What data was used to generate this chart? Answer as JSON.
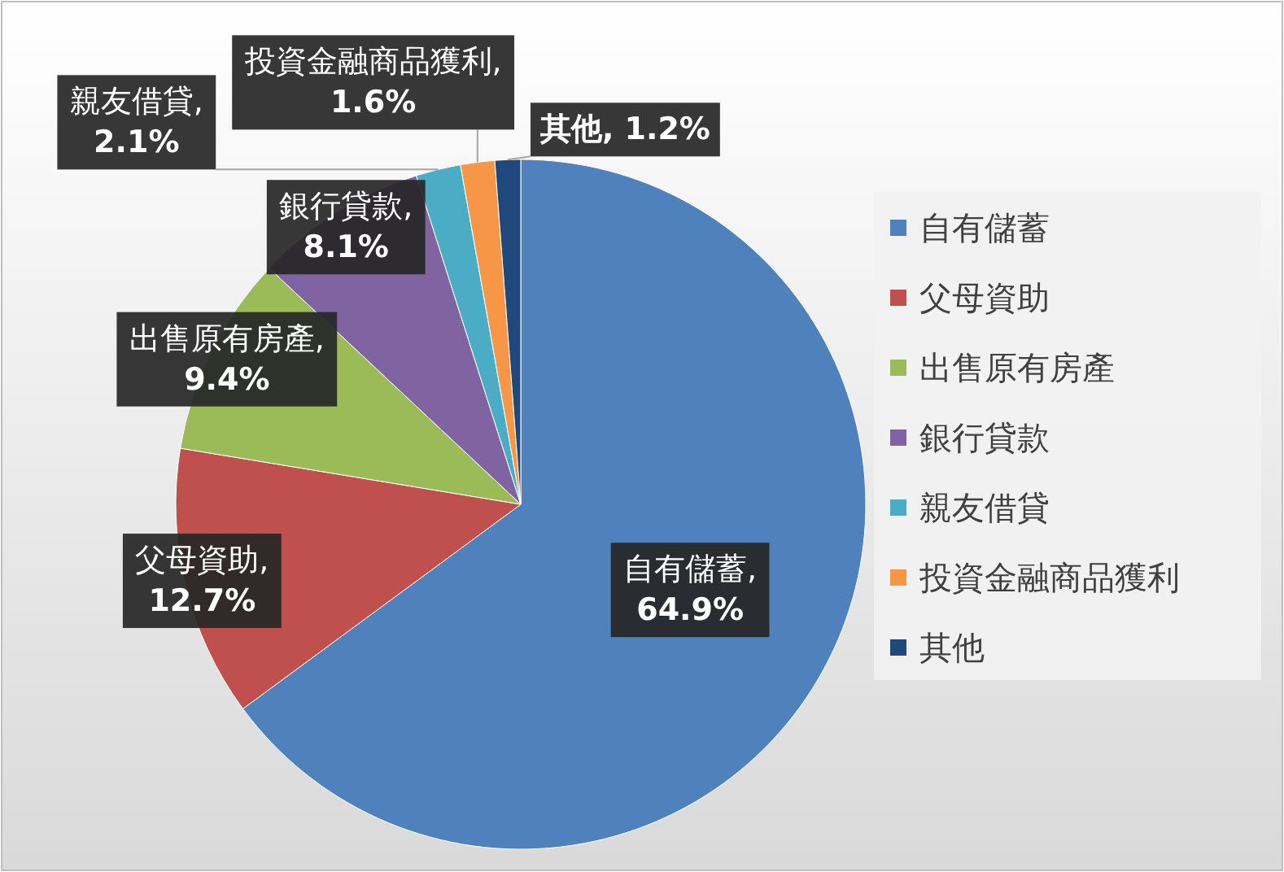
{
  "chart_data": {
    "type": "pie",
    "categories": [
      "自有儲蓄",
      "父母資助",
      "出售原有房產",
      "銀行貸款",
      "親友借貸",
      "投資金融商品獲利",
      "其他"
    ],
    "values": [
      64.9,
      12.7,
      9.4,
      8.1,
      2.1,
      1.6,
      1.2
    ],
    "colors": [
      "#4f81bd",
      "#c0504d",
      "#9bbb59",
      "#8064a2",
      "#4bacc6",
      "#f79646",
      "#1f497d"
    ],
    "value_labels": [
      ", 64.9%",
      ", 12.7%",
      ", 9.4%",
      ", 8.1%",
      ", 2.1%",
      ", 1.6%",
      ", 1.2%"
    ],
    "legend": "right"
  }
}
